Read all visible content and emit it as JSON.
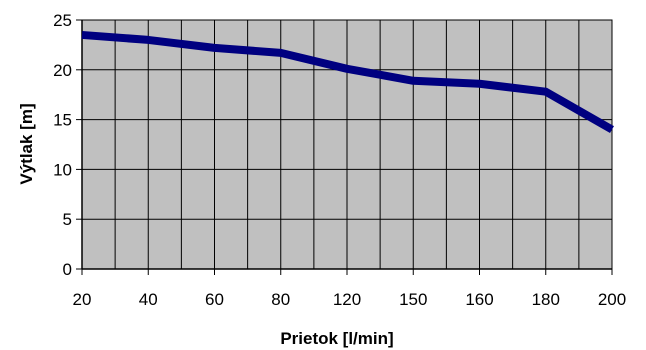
{
  "chart_data": {
    "type": "line",
    "title": "",
    "xlabel": "Prietok [l/min]",
    "ylabel": "Výtlak [m]",
    "categories": [
      "20",
      "40",
      "60",
      "80",
      "120",
      "150",
      "160",
      "180",
      "200"
    ],
    "x": [
      20,
      40,
      60,
      80,
      120,
      150,
      160,
      180,
      200
    ],
    "series": [
      {
        "values": [
          23.5,
          23.0,
          22.2,
          21.7,
          20.1,
          18.9,
          18.6,
          17.8,
          14.0
        ]
      }
    ],
    "ylim": [
      0,
      25
    ],
    "yticks": [
      0,
      5,
      10,
      15,
      20,
      25
    ],
    "grid": true,
    "legend": "none",
    "colors": {
      "plot_background": "#c0c0c0",
      "line": "#000080",
      "grid": "#000000"
    }
  }
}
